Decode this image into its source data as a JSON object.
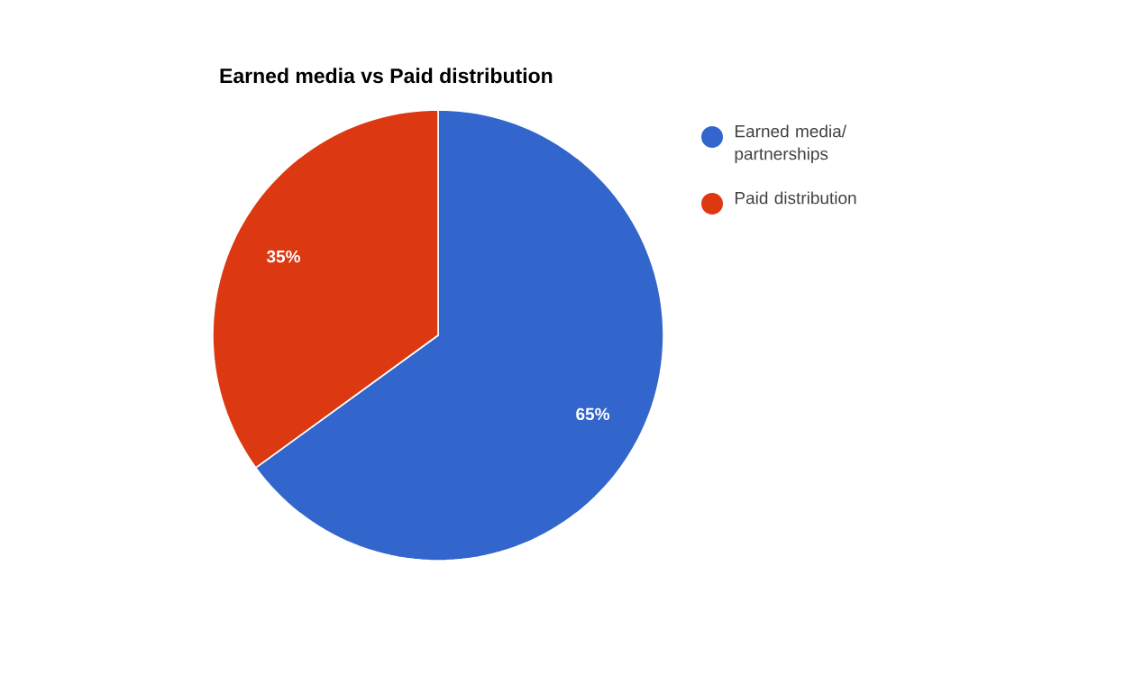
{
  "chart_data": {
    "type": "pie",
    "title": "Earned media vs Paid distribution",
    "categories": [
      "Earned media/partnerships",
      "Paid distribution"
    ],
    "values": [
      65,
      35
    ],
    "colors": [
      "#3366cc",
      "#dc3912"
    ],
    "value_labels": [
      "65%",
      "35%"
    ],
    "legend": "right"
  }
}
